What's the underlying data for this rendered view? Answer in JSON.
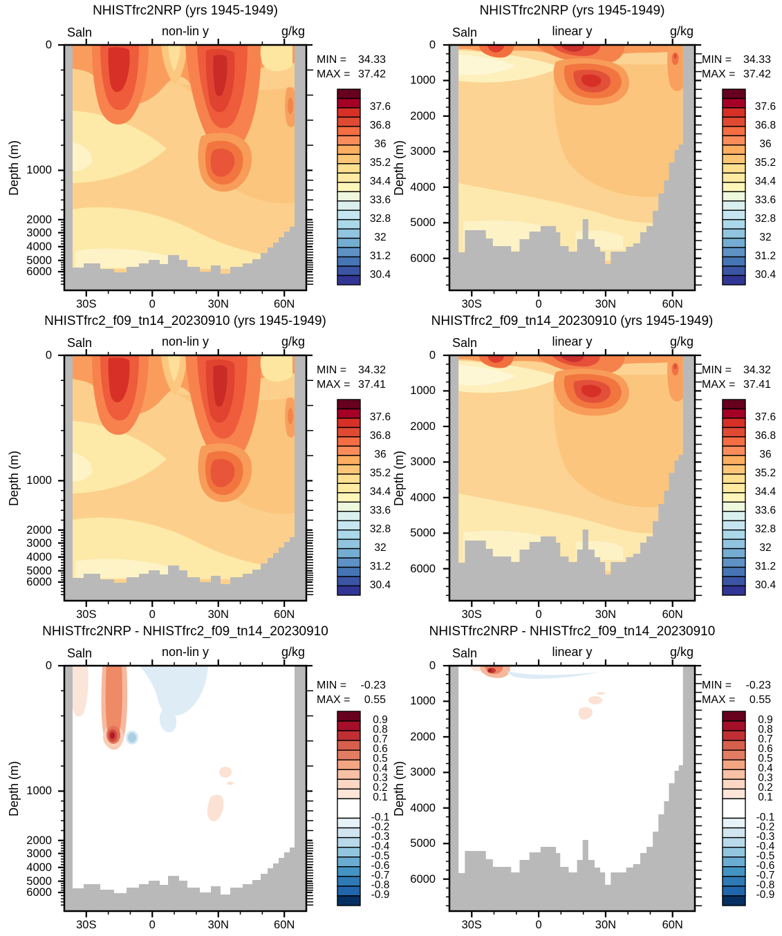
{
  "figure": {
    "y_axis_label": "Depth (m)",
    "x_tick_labels": [
      "30S",
      "0",
      "30N",
      "60N"
    ],
    "y_tick_labels": [
      "0",
      "1000",
      "2000",
      "3000",
      "4000",
      "5000",
      "6000"
    ],
    "panels": [
      {
        "title": "NHISTfrc2NRP (yrs 1945-1949)",
        "left_label": "Saln",
        "scale_label": "non-lin y",
        "unit_label": "g/kg",
        "min_label": "MIN =",
        "max_label": "MAX =",
        "min_value": "34.33",
        "max_value": "37.42",
        "field": "sal_nonlin",
        "yscale": "nonlin",
        "colorbar": "salinity"
      },
      {
        "title": "NHISTfrc2NRP (yrs 1945-1949)",
        "left_label": "Saln",
        "scale_label": "linear y",
        "unit_label": "g/kg",
        "min_label": "MIN =",
        "max_label": "MAX =",
        "min_value": "34.33",
        "max_value": "37.42",
        "field": "sal_linear",
        "yscale": "linear",
        "colorbar": "salinity"
      },
      {
        "title": "NHISTfrc2_f09_tn14_20230910 (yrs 1945-1949)",
        "left_label": "Saln",
        "scale_label": "non-lin y",
        "unit_label": "g/kg",
        "min_label": "MIN =",
        "max_label": "MAX =",
        "min_value": "34.32",
        "max_value": "37.41",
        "field": "sal_nonlin",
        "yscale": "nonlin",
        "colorbar": "salinity"
      },
      {
        "title": "NHISTfrc2_f09_tn14_20230910 (yrs 1945-1949)",
        "left_label": "Saln",
        "scale_label": "linear y",
        "unit_label": "g/kg",
        "min_label": "MIN =",
        "max_label": "MAX =",
        "min_value": "34.32",
        "max_value": "37.41",
        "field": "sal_linear",
        "yscale": "linear",
        "colorbar": "salinity"
      },
      {
        "title": "NHISTfrc2NRP - NHISTfrc2_f09_tn14_20230910",
        "left_label": "Saln",
        "scale_label": "non-lin y",
        "unit_label": "g/kg",
        "min_label": "MIN =",
        "max_label": "MAX =",
        "min_value": "-0.23",
        "max_value": "0.55",
        "field": "diff_nonlin",
        "yscale": "nonlin",
        "colorbar": "difference"
      },
      {
        "title": "NHISTfrc2NRP - NHISTfrc2_f09_tn14_20230910",
        "left_label": "Saln",
        "scale_label": "linear y",
        "unit_label": "g/kg",
        "min_label": "MIN =",
        "max_label": "MAX =",
        "min_value": "-0.23",
        "max_value": "0.55",
        "field": "diff_linear",
        "yscale": "linear",
        "colorbar": "difference"
      }
    ]
  },
  "colorbars": {
    "salinity": {
      "tick_labels": [
        "37.6",
        "36.8",
        "36",
        "35.2",
        "34.4",
        "33.6",
        "32.8",
        "32",
        "31.2",
        "30.4"
      ],
      "colors": [
        "#67001f",
        "#a50026",
        "#d73027",
        "#e04a33",
        "#f46d43",
        "#fa8c5c",
        "#fdae61",
        "#fdc677",
        "#fee090",
        "#feeaa1",
        "#fef6b9",
        "#eef8dd",
        "#d9f0ef",
        "#c5e6f0",
        "#abd9e9",
        "#91c4de",
        "#74add1",
        "#5e92c5",
        "#4575b4",
        "#3b55a4",
        "#313695"
      ]
    },
    "difference": {
      "tick_labels": [
        "0.9",
        "0.8",
        "0.7",
        "0.6",
        "0.5",
        "0.4",
        "0.3",
        "0.2",
        "0.1",
        "-0.1",
        "-0.2",
        "-0.3",
        "-0.4",
        "-0.5",
        "-0.6",
        "-0.7",
        "-0.8",
        "-0.9"
      ],
      "colors": [
        "#67001f",
        "#a50f29",
        "#bf2f33",
        "#d6604d",
        "#e27c62",
        "#f4a582",
        "#f8c0a4",
        "#fcd7c4",
        "#fee5d8",
        "#ffffff",
        "#e7f1f8",
        "#d1e5f0",
        "#b7d9ea",
        "#92c5de",
        "#6bacd2",
        "#4393c3",
        "#2e7ab6",
        "#2166ac",
        "#053061"
      ]
    }
  },
  "style": {
    "land_color": "#b9b9b9",
    "background": "#ffffff",
    "axis_color": "#000000"
  },
  "chart_data": [
    {
      "type": "filled_contour",
      "title": "NHISTfrc2NRP (yrs 1945-1949)",
      "variable": "Saln",
      "units": "g/kg",
      "y_scale": "non-linear",
      "x_tick_labels": [
        "30S",
        "0",
        "30N",
        "60N"
      ],
      "x_range_deg": [
        -40,
        70
      ],
      "y_ticks_m": [
        0,
        1000,
        2000,
        3000,
        4000,
        5000,
        6000
      ],
      "y_range_m": [
        0,
        6900
      ],
      "min": 34.33,
      "max": 37.42,
      "contour_interval": 0.4,
      "levels_range": [
        30.4,
        38.0
      ],
      "features": [
        {
          "lat": "15S",
          "depth_m": 150,
          "value": "~37.4 salinity maximum (S subtropical gyre)"
        },
        {
          "lat": "25N",
          "depth_m": 200,
          "value": "~37.4 salinity maximum (N subtropical gyre)"
        },
        {
          "lat": "30N",
          "depth_m": 1000,
          "value": "~36.4 Mediterranean outflow tongue"
        },
        {
          "lat": "40S-0",
          "depth_m": 800,
          "value": "~34.6 fresh intermediate water tongue"
        },
        {
          "lat": "deep basin",
          "depth_m": 4000,
          "value": "~34.8 deep water"
        }
      ]
    },
    {
      "type": "filled_contour",
      "title": "NHISTfrc2NRP (yrs 1945-1949)",
      "variable": "Saln",
      "units": "g/kg",
      "y_scale": "linear",
      "x_tick_labels": [
        "30S",
        "0",
        "30N",
        "60N"
      ],
      "x_range_deg": [
        -40,
        70
      ],
      "y_ticks_m": [
        0,
        1000,
        2000,
        3000,
        4000,
        5000,
        6000
      ],
      "y_range_m": [
        0,
        6900
      ],
      "min": 34.33,
      "max": 37.42,
      "contour_interval": 0.4,
      "levels_range": [
        30.4,
        38.0
      ],
      "features": [
        {
          "lat": "15S",
          "depth_m": 100,
          "value": "~37.4 surface salinity maximum"
        },
        {
          "lat": "25N",
          "depth_m": 100,
          "value": "~37.4 surface salinity maximum"
        },
        {
          "lat": "28N",
          "depth_m": 900,
          "value": "~36.4 Mediterranean outflow blob"
        }
      ]
    },
    {
      "type": "filled_contour",
      "title": "NHISTfrc2_f09_tn14_20230910 (yrs 1945-1949)",
      "variable": "Saln",
      "units": "g/kg",
      "y_scale": "non-linear",
      "x_tick_labels": [
        "30S",
        "0",
        "30N",
        "60N"
      ],
      "x_range_deg": [
        -40,
        70
      ],
      "y_ticks_m": [
        0,
        1000,
        2000,
        3000,
        4000,
        5000,
        6000
      ],
      "y_range_m": [
        0,
        6900
      ],
      "min": 34.32,
      "max": 37.41,
      "contour_interval": 0.4,
      "levels_range": [
        30.4,
        38.0
      ],
      "features": [
        {
          "lat": "15S",
          "depth_m": 150,
          "value": "~37.4 salinity maximum"
        },
        {
          "lat": "25N",
          "depth_m": 200,
          "value": "~37.4 salinity maximum"
        },
        {
          "lat": "30N",
          "depth_m": 1000,
          "value": "~36.4 Mediterranean outflow tongue"
        }
      ]
    },
    {
      "type": "filled_contour",
      "title": "NHISTfrc2_f09_tn14_20230910 (yrs 1945-1949)",
      "variable": "Saln",
      "units": "g/kg",
      "y_scale": "linear",
      "x_tick_labels": [
        "30S",
        "0",
        "30N",
        "60N"
      ],
      "x_range_deg": [
        -40,
        70
      ],
      "y_ticks_m": [
        0,
        1000,
        2000,
        3000,
        4000,
        5000,
        6000
      ],
      "y_range_m": [
        0,
        6900
      ],
      "min": 34.32,
      "max": 37.41,
      "contour_interval": 0.4,
      "levels_range": [
        30.4,
        38.0
      ],
      "features": [
        {
          "lat": "15S",
          "depth_m": 100,
          "value": "~37.4 surface salinity maximum"
        },
        {
          "lat": "28N",
          "depth_m": 900,
          "value": "~36.4 Mediterranean outflow blob"
        }
      ]
    },
    {
      "type": "filled_contour",
      "title": "NHISTfrc2NRP - NHISTfrc2_f09_tn14_20230910",
      "variable": "Saln difference",
      "units": "g/kg",
      "y_scale": "non-linear",
      "x_tick_labels": [
        "30S",
        "0",
        "30N",
        "60N"
      ],
      "x_range_deg": [
        -40,
        70
      ],
      "y_ticks_m": [
        0,
        1000,
        2000,
        3000,
        4000,
        5000,
        6000
      ],
      "y_range_m": [
        0,
        6900
      ],
      "min": -0.23,
      "max": 0.55,
      "contour_interval": 0.1,
      "levels_range": [
        -0.9,
        0.9
      ],
      "features": [
        {
          "lat": "17S",
          "depth_m": 500,
          "value": "+0.55 positive difference core"
        },
        {
          "lat": "17S",
          "depth_m": "0-450",
          "value": "+0.2 to +0.4 vertical streak"
        },
        {
          "lat": "0-12N",
          "depth_m": "0-700",
          "value": "-0.1 to -0.2 weak negative patch"
        },
        {
          "lat": "25-30N",
          "depth_m": "800-1100",
          "value": "+0.1 faint positive blobs"
        }
      ]
    },
    {
      "type": "filled_contour",
      "title": "NHISTfrc2NRP - NHISTfrc2_f09_tn14_20230910",
      "variable": "Saln difference",
      "units": "g/kg",
      "y_scale": "linear",
      "x_tick_labels": [
        "30S",
        "0",
        "30N",
        "60N"
      ],
      "x_range_deg": [
        -40,
        70
      ],
      "y_ticks_m": [
        0,
        1000,
        2000,
        3000,
        4000,
        5000,
        6000
      ],
      "y_range_m": [
        0,
        6900
      ],
      "min": -0.23,
      "max": 0.55,
      "contour_interval": 0.1,
      "levels_range": [
        -0.9,
        0.9
      ],
      "features": [
        {
          "lat": "17S",
          "depth_m": 150,
          "value": "+0.5 positive difference blob near surface"
        },
        {
          "lat": "0-20N",
          "depth_m": 200,
          "value": "-0.1 thin negative streak"
        },
        {
          "lat": "25-30N",
          "depth_m": 1000,
          "value": "+0.1 faint positive blobs"
        }
      ]
    }
  ]
}
